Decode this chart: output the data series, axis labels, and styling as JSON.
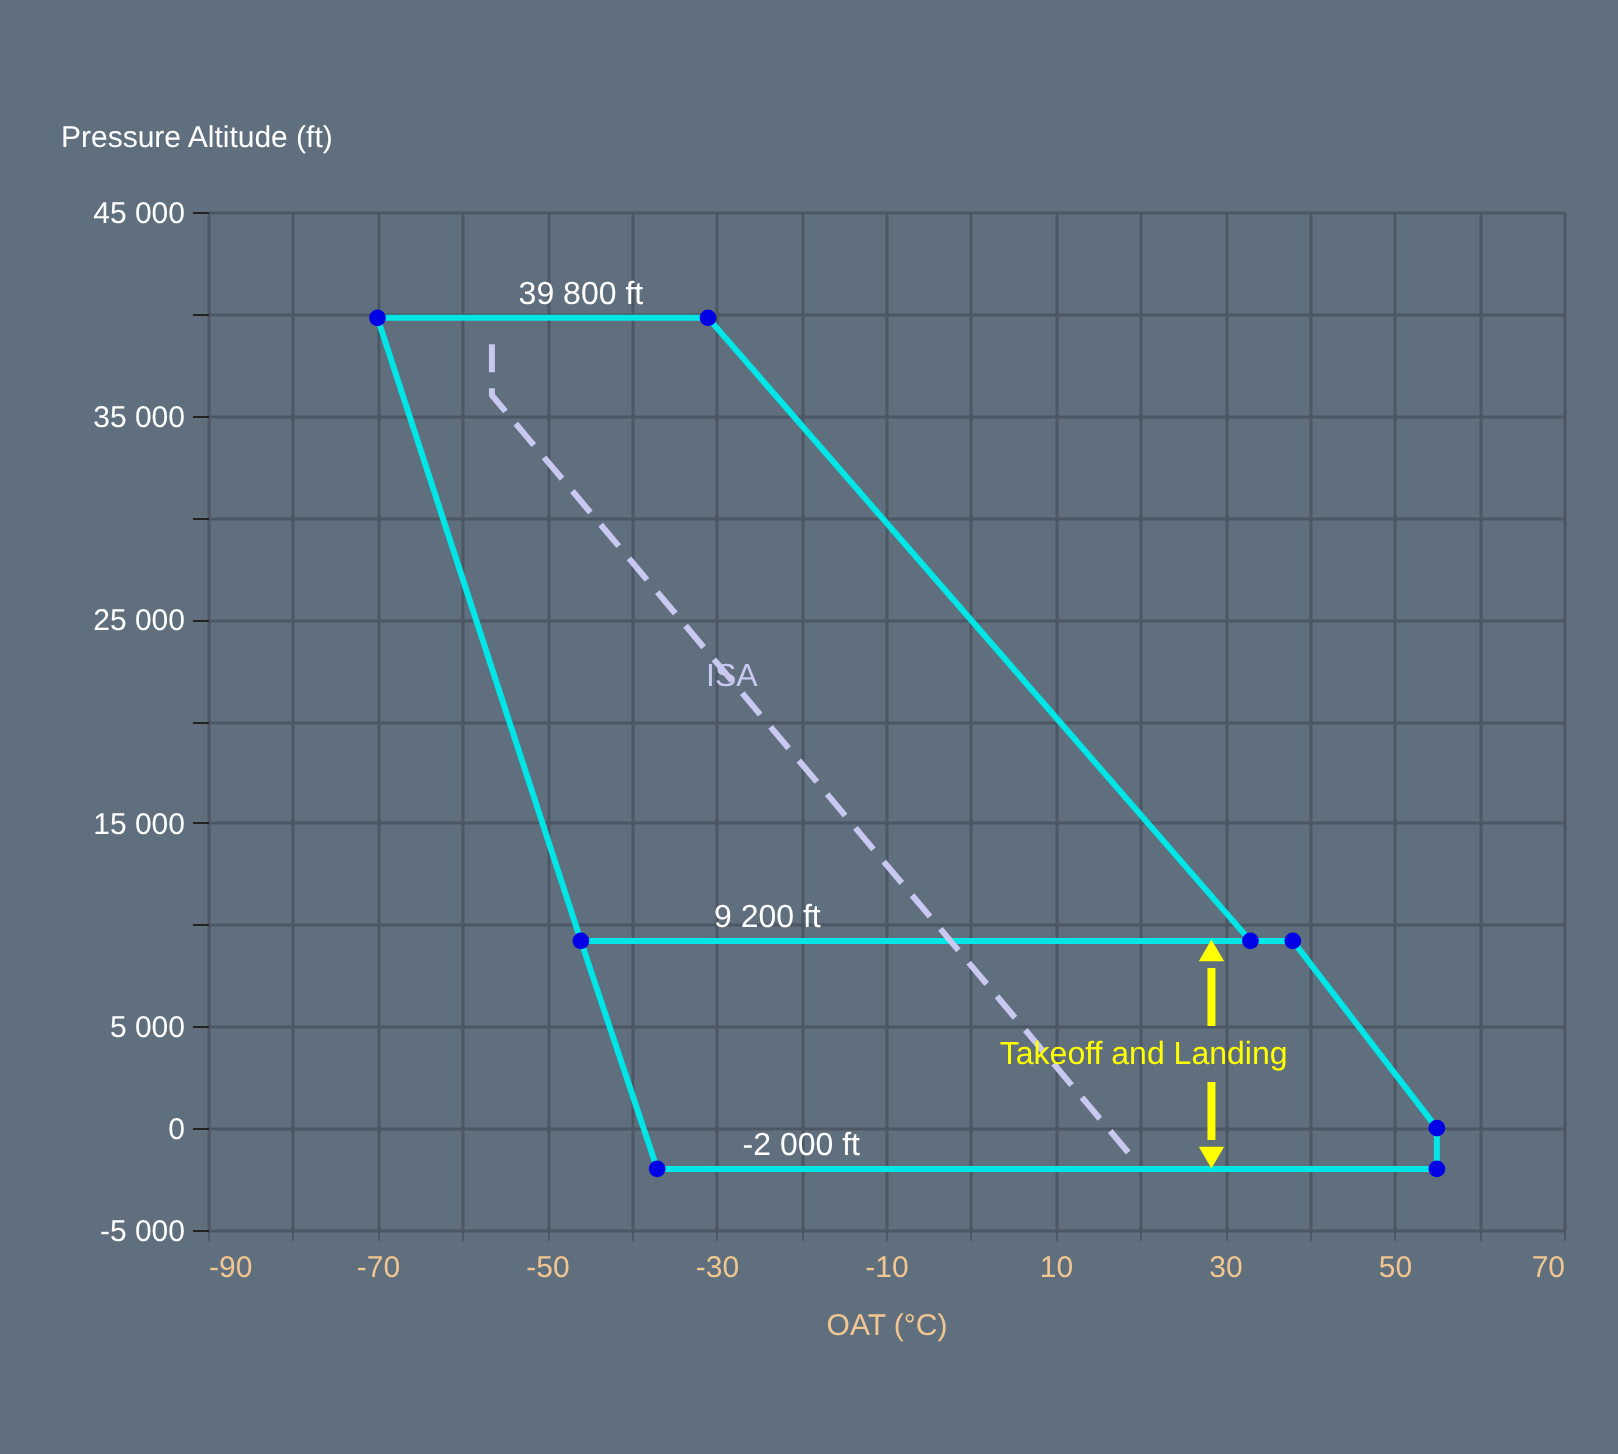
{
  "chart_data": {
    "type": "line",
    "xlabel": "OAT (°C)",
    "ylabel": "Pressure Altitude (ft)",
    "xlim": [
      -90,
      70
    ],
    "ylim": [
      -5000,
      45000
    ],
    "xticks": [
      -90,
      {
        "value": -80,
        "label": null
      },
      -70,
      {
        "value": -60,
        "label": null
      },
      -50,
      {
        "value": -40,
        "label": null
      },
      -30,
      {
        "value": -20,
        "label": null
      },
      -10,
      {
        "value": 0,
        "label": null
      },
      10,
      {
        "value": 20,
        "label": null
      },
      30,
      {
        "value": 40,
        "label": null
      },
      50,
      {
        "value": 60,
        "label": null
      },
      70
    ],
    "yticks": [
      {
        "value": -5000,
        "label": "-5 000"
      },
      0,
      {
        "value": 5000,
        "label": "5 000"
      },
      {
        "value": 10000,
        "label": null
      },
      {
        "value": 15000,
        "label": "15 000"
      },
      {
        "value": 20000,
        "label": null
      },
      {
        "value": 25000,
        "label": "25 000"
      },
      {
        "value": 30000,
        "label": null
      },
      {
        "value": 35000,
        "label": "35 000"
      },
      {
        "value": 40000,
        "label": null
      },
      {
        "value": 45000,
        "label": "45 000"
      }
    ],
    "grid": true,
    "series": [
      {
        "color": "#00e5e5",
        "x": [
          -70,
          -31,
          33,
          38,
          55,
          55
        ],
        "values": [
          39800,
          39800,
          9200,
          9200,
          0,
          -2000
        ]
      },
      {
        "color": "#00e5e5",
        "x": [
          -70,
          -46,
          -37,
          55
        ],
        "values": [
          39800,
          9200,
          -2000,
          -2000
        ]
      },
      {
        "color": "#00e5e5",
        "x": [
          -46,
          33
        ],
        "values": [
          9200,
          9200
        ]
      },
      {
        "type": "scatter",
        "color": "#0000e6",
        "marker": "circle",
        "x": [
          -70,
          -31,
          33,
          38,
          55,
          55,
          -37,
          -46
        ],
        "values": [
          39800,
          39800,
          9200,
          9200,
          0,
          -2000,
          -2000,
          9200
        ]
      },
      {
        "name": "ISA",
        "color": "#c8c8f0",
        "line_style": "dashed",
        "x": [
          -56.5,
          -56.5,
          19
        ],
        "values": [
          38500,
          36000,
          -1400
        ]
      }
    ],
    "annotations": [
      {
        "text": "39 800 ft",
        "x": -46,
        "y": 39800
      },
      {
        "text": "9 200 ft",
        "x": -24,
        "y": 9200
      },
      {
        "text": "-2 000 ft",
        "x": -20,
        "y": -2000
      },
      "Takeoff and Landing"
    ]
  }
}
